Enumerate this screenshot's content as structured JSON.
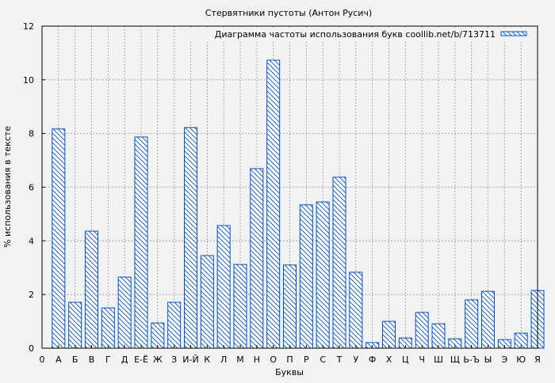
{
  "chart_data": {
    "type": "bar",
    "title": "Стервятники пустоты (Антон Русич)",
    "xlabel": "Буквы",
    "ylabel": "% использования в тексте",
    "legend": {
      "label": "Диаграмма частоты использования букв coollib.net/b/713711",
      "position": "top-right"
    },
    "x_origin_label": "0",
    "categories": [
      "А",
      "Б",
      "В",
      "Г",
      "Д",
      "Е-Ё",
      "Ж",
      "З",
      "И-Й",
      "К",
      "Л",
      "М",
      "Н",
      "О",
      "П",
      "Р",
      "С",
      "Т",
      "У",
      "Ф",
      "Х",
      "Ц",
      "Ч",
      "Ш",
      "Щ",
      "Ь-Ъ",
      "Ы",
      "Э",
      "Ю",
      "Я"
    ],
    "values": [
      8.17,
      1.71,
      4.36,
      1.5,
      2.65,
      7.87,
      0.94,
      1.71,
      8.22,
      3.45,
      4.57,
      3.12,
      6.69,
      10.73,
      3.1,
      5.34,
      5.45,
      6.37,
      2.83,
      0.21,
      1.0,
      0.38,
      1.33,
      0.91,
      0.35,
      1.8,
      2.12,
      0.32,
      0.56,
      2.15
    ],
    "ylim": [
      0,
      12
    ],
    "yticks": [
      "0",
      "2",
      "4",
      "6",
      "8",
      "10",
      "12"
    ],
    "grid": true,
    "colors": {
      "bar_stroke": "#0050c8",
      "bar_fill": "#ffffff",
      "background": "#f2f2f2",
      "grid": "#999999"
    }
  }
}
